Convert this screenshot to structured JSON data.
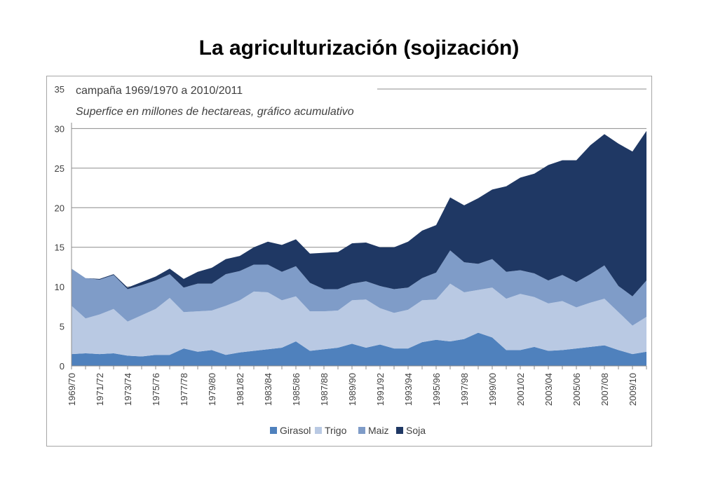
{
  "title": "La agriculturización (sojización)",
  "chart_data": {
    "type": "area",
    "stacked": true,
    "annotation_line1": "campaña 1969/1970 a 2010/2011",
    "annotation_line2": "Superfice en millones de hectareas, gráfico acumulativo",
    "ylim": [
      0,
      35
    ],
    "yticks": [
      0,
      5,
      10,
      15,
      20,
      25,
      30,
      35
    ],
    "grid": true,
    "legend_position": "bottom",
    "categories": [
      "1969/70",
      "1970/71",
      "1971/72",
      "1972/73",
      "1973/74",
      "1974/75",
      "1975/76",
      "1976/77",
      "1977/78",
      "1978/79",
      "1979/80",
      "1980/81",
      "1981/82",
      "1982/83",
      "1983/84",
      "1984/85",
      "1985/86",
      "1986/87",
      "1987/88",
      "1988/89",
      "1989/90",
      "1990/91",
      "1991/92",
      "1992/93",
      "1993/94",
      "1994/95",
      "1995/96",
      "1996/97",
      "1997/98",
      "1998/99",
      "1999/00",
      "2000/01",
      "2001/02",
      "2002/03",
      "2003/04",
      "2004/05",
      "2005/06",
      "2006/07",
      "2007/08",
      "2008/09",
      "2009/10",
      "2010/11"
    ],
    "x_tick_labels": [
      "1969/70",
      "1971/72",
      "1973/74",
      "1975/76",
      "1977/78",
      "1979/80",
      "1981/82",
      "1983/84",
      "1985/86",
      "1987/88",
      "1989/90",
      "1991/92",
      "1993/94",
      "1995/96",
      "1997/98",
      "1999/00",
      "2001/02",
      "2003/04",
      "2005/06",
      "2007/08",
      "2009/10"
    ],
    "series": [
      {
        "name": "Girasol",
        "color": "#4f81bd",
        "values": [
          1.5,
          1.6,
          1.5,
          1.6,
          1.3,
          1.2,
          1.4,
          1.4,
          2.2,
          1.8,
          2.0,
          1.4,
          1.7,
          1.9,
          2.1,
          2.3,
          3.1,
          1.9,
          2.1,
          2.3,
          2.8,
          2.3,
          2.7,
          2.2,
          2.2,
          3.0,
          3.3,
          3.1,
          3.4,
          4.2,
          3.6,
          2.0,
          2.0,
          2.4,
          1.9,
          2.0,
          2.2,
          2.4,
          2.6,
          2.0,
          1.5,
          1.8
        ]
      },
      {
        "name": "Trigo",
        "color": "#b9c9e3",
        "values": [
          6.1,
          4.4,
          5.0,
          5.6,
          4.3,
          5.2,
          5.8,
          7.2,
          4.6,
          5.1,
          5.0,
          6.2,
          6.6,
          7.5,
          7.2,
          6.0,
          5.7,
          5.0,
          4.8,
          4.7,
          5.5,
          6.1,
          4.6,
          4.5,
          4.9,
          5.3,
          5.1,
          7.3,
          5.9,
          5.4,
          6.3,
          6.5,
          7.1,
          6.3,
          6.0,
          6.2,
          5.2,
          5.6,
          5.9,
          4.8,
          3.6,
          4.4
        ]
      },
      {
        "name": "Maiz",
        "color": "#7f9cc8",
        "values": [
          4.7,
          5.1,
          4.4,
          4.3,
          4.1,
          3.8,
          3.6,
          3.0,
          3.1,
          3.5,
          3.4,
          4.0,
          3.7,
          3.4,
          3.5,
          3.6,
          3.8,
          3.6,
          2.8,
          2.7,
          2.1,
          2.3,
          2.8,
          3.0,
          2.8,
          2.8,
          3.4,
          4.2,
          3.8,
          3.3,
          3.6,
          3.4,
          3.0,
          3.0,
          2.9,
          3.3,
          3.2,
          3.6,
          4.2,
          3.3,
          3.7,
          4.6
        ]
      },
      {
        "name": "Soja",
        "color": "#1f3864",
        "values": [
          0.0,
          0.0,
          0.1,
          0.1,
          0.2,
          0.4,
          0.5,
          0.7,
          1.1,
          1.5,
          2.0,
          1.9,
          1.9,
          2.2,
          2.9,
          3.4,
          3.4,
          3.7,
          4.6,
          4.7,
          5.1,
          4.9,
          4.9,
          5.3,
          5.8,
          6.0,
          6.0,
          6.7,
          7.2,
          8.3,
          8.8,
          10.8,
          11.7,
          12.6,
          14.6,
          14.5,
          15.4,
          16.3,
          16.6,
          18.0,
          18.3,
          18.9
        ]
      }
    ]
  }
}
